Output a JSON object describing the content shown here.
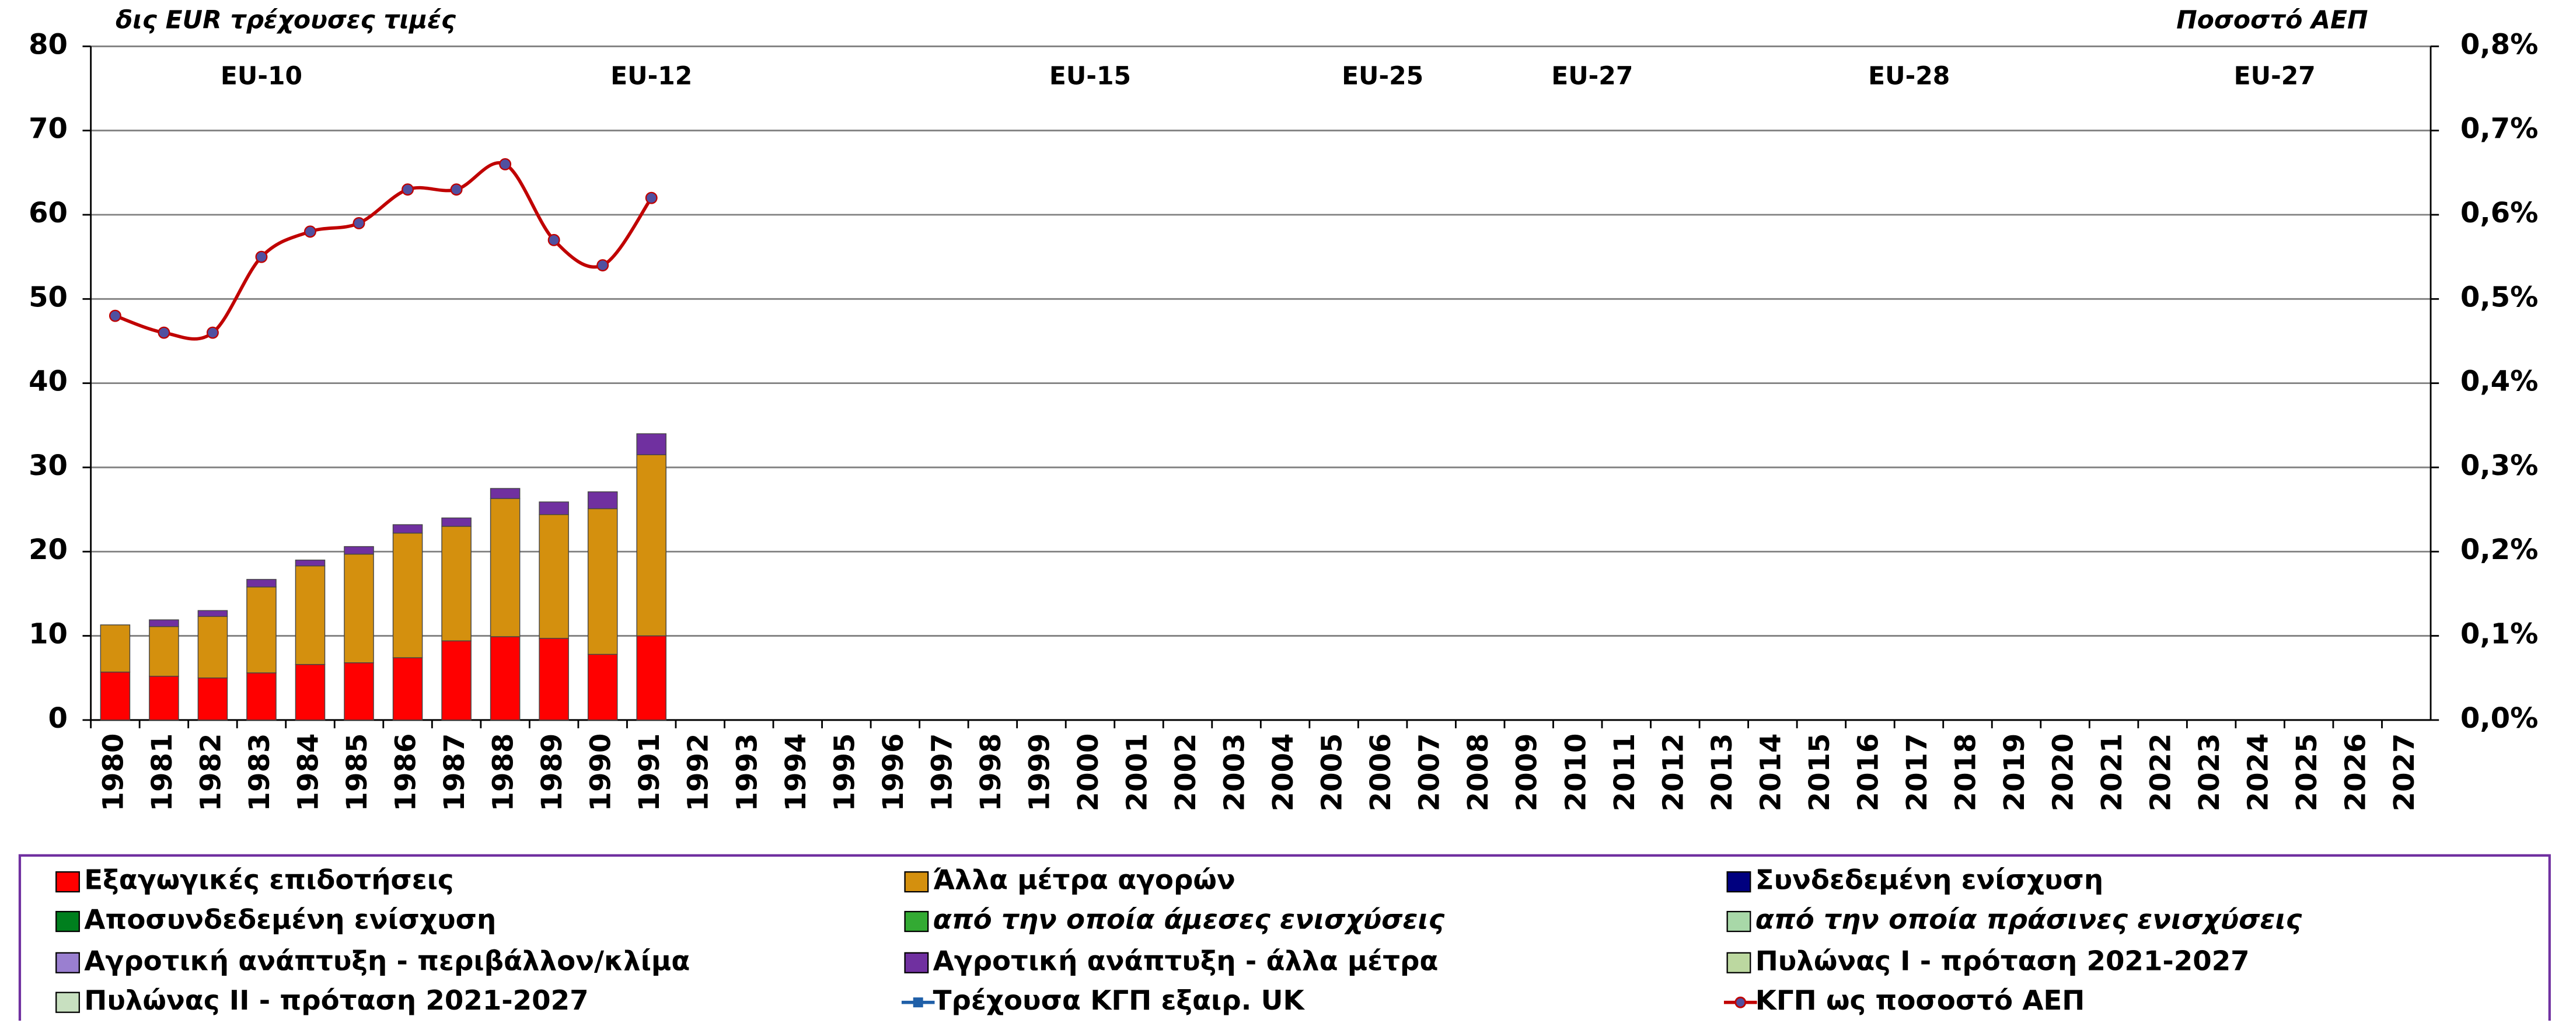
{
  "chart_data": {
    "type": "bar",
    "stacked": true,
    "y_label": "δις EUR τρέχουσες τιμές",
    "y2_label": "Ποσοστό ΑΕΠ",
    "categories": [
      1980,
      1981,
      1982,
      1983,
      1984,
      1985,
      1986,
      1987,
      1988,
      1989,
      1990,
      1991,
      1992,
      1993,
      1994,
      1995,
      1996,
      1997,
      1998,
      1999,
      2000,
      2001,
      2002,
      2003,
      2004,
      2005,
      2006,
      2007,
      2008,
      2009,
      2010,
      2011,
      2012,
      2013,
      2014,
      2015,
      2016,
      2017,
      2018,
      2019,
      2020,
      2021,
      2022,
      2023,
      2024,
      2025,
      2026,
      2027
    ],
    "ylim": [
      0,
      80
    ],
    "yticks": [
      0,
      10,
      20,
      30,
      40,
      50,
      60,
      70,
      80
    ],
    "y2lim": [
      0,
      0.8
    ],
    "y2ticks": [
      {
        "value": 0,
        "label": "0,0%"
      },
      {
        "value": 0.1,
        "label": "0,1%"
      },
      {
        "value": 0.2,
        "label": "0,2%"
      },
      {
        "value": 0.3,
        "label": "0,3%"
      },
      {
        "value": 0.4,
        "label": "0,4%"
      },
      {
        "value": 0.5,
        "label": "0,5%"
      },
      {
        "value": 0.6,
        "label": "0,6%"
      },
      {
        "value": 0.7,
        "label": "0,7%"
      },
      {
        "value": 0.8,
        "label": "0,8%"
      }
    ],
    "grid": true,
    "annotations": [
      {
        "text": "EU-10",
        "x": 1983
      },
      {
        "text": "EU-12",
        "x": 1991
      },
      {
        "text": "EU-15",
        "x": 2000
      },
      {
        "text": "EU-25",
        "x": 2006
      },
      {
        "text": "EU-27",
        "x": 2010.3
      },
      {
        "text": "EU-28",
        "x": 2016.8
      },
      {
        "text": "EU-27",
        "x": 2024.3
      }
    ],
    "series": [
      {
        "name": "Εξαγωγικές επιδοτήσεις",
        "color": "#ff0000",
        "values": [
          5.7,
          5.2,
          5.0,
          5.6,
          6.6,
          6.8,
          7.4,
          9.4,
          9.9,
          9.7,
          7.8,
          10.0,
          null,
          null,
          null,
          null,
          null,
          null,
          null,
          null,
          null,
          null,
          null,
          null,
          null,
          null,
          null,
          null,
          null,
          null,
          null,
          null,
          null,
          null,
          null,
          null,
          null,
          null,
          null,
          null,
          null,
          null,
          null,
          null,
          null,
          null,
          null,
          null
        ]
      },
      {
        "name": "Άλλα μέτρα αγορών",
        "color": "#d4900e",
        "values": [
          5.6,
          5.9,
          7.3,
          10.2,
          11.7,
          12.9,
          14.8,
          13.6,
          16.4,
          14.7,
          17.3,
          21.5,
          null,
          null,
          null,
          null,
          null,
          null,
          null,
          null,
          null,
          null,
          null,
          null,
          null,
          null,
          null,
          null,
          null,
          null,
          null,
          null,
          null,
          null,
          null,
          null,
          null,
          null,
          null,
          null,
          null,
          null,
          null,
          null,
          null,
          null,
          null,
          null
        ]
      },
      {
        "name": "Συνδεδεμένη ενίσχυση",
        "color": "#00007f"
      },
      {
        "name": "Αποσυνδεδεμένη ενίσχυση",
        "color": "#007f1e"
      },
      {
        "name": "από την οποία άμεσες ενισχύσεις",
        "color": "#33aa33",
        "italic": true
      },
      {
        "name": "από την οποία πράσινες ενισχύσεις",
        "color": "#a8d8a8",
        "italic": true
      },
      {
        "name": "Αγροτική ανάπτυξη - περιβάλλον/κλίμα",
        "color": "#9a7fd0"
      },
      {
        "name": "Αγροτική ανάπτυξη - άλλα μέτρα",
        "color": "#7030a0",
        "values": [
          0,
          0.8,
          0.7,
          0.9,
          0.7,
          0.9,
          1.0,
          1.0,
          1.2,
          1.5,
          2.0,
          2.5,
          null,
          null,
          null,
          null,
          null,
          null,
          null,
          null,
          null,
          null,
          null,
          null,
          null,
          null,
          null,
          null,
          null,
          null,
          null,
          null,
          null,
          null,
          null,
          null,
          null,
          null,
          null,
          null,
          null,
          null,
          null,
          null,
          null,
          null,
          null,
          null
        ]
      },
      {
        "name": "Πυλώνας Ι - πρόταση 2021-2027",
        "color": "#bcd8a0"
      },
      {
        "name": "Πυλώνας ΙΙ - πρόταση 2021-2027",
        "color": "#c8e0c0"
      },
      {
        "name": "Τρέχουσα ΚΓΠ εξαιρ. UK",
        "color": "#1f5fa8",
        "type": "line",
        "axis": "y2"
      },
      {
        "name": "ΚΓΠ ως ποσοστό ΑΕΠ",
        "color": "#c00000",
        "marker_color": "#5050a0",
        "type": "line",
        "axis": "y2",
        "values": [
          0.48,
          0.46,
          0.46,
          0.55,
          0.58,
          0.59,
          0.63,
          0.63,
          0.66,
          0.57,
          0.54,
          0.62,
          null,
          null,
          null,
          null,
          null,
          null,
          null,
          null,
          null,
          null,
          null,
          null,
          null,
          null,
          null,
          null,
          null,
          null,
          null,
          null,
          null,
          null,
          null,
          null,
          null,
          null,
          null,
          null,
          null,
          null,
          null,
          null,
          null,
          null,
          null,
          null
        ]
      }
    ]
  }
}
